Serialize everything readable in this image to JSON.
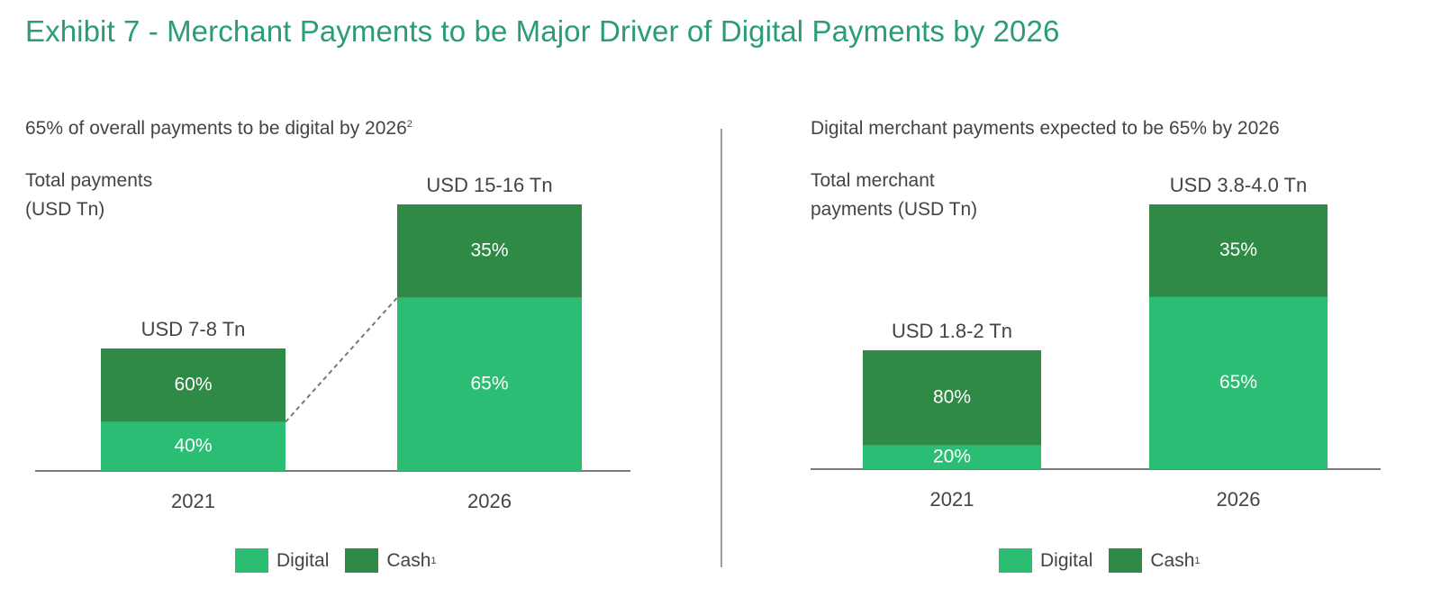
{
  "title": "Exhibit 7 - Merchant Payments to be Major Driver of Digital Payments by 2026",
  "colors": {
    "digital": "#2bbd74",
    "cash": "#2f8a45",
    "title": "#2a9d74"
  },
  "left_panel": {
    "subtitle": "65% of overall payments to be digital by 2026",
    "subtitle_note": "2",
    "ylabel_line1": "Total payments",
    "ylabel_line2": "(USD Tn)"
  },
  "right_panel": {
    "subtitle": "Digital merchant payments expected to be 65% by 2026",
    "ylabel_line1": "Total merchant",
    "ylabel_line2": "payments (USD Tn)"
  },
  "legend": {
    "digital": "Digital",
    "cash": "Cash",
    "cash_note": "1"
  },
  "chart_data": [
    {
      "type": "bar",
      "stacked": true,
      "categories": [
        "2021",
        "2026"
      ],
      "totals_labels": [
        "USD 7-8 Tn",
        "USD 15-16 Tn"
      ],
      "series": [
        {
          "name": "Digital",
          "values": [
            40,
            65
          ],
          "labels": [
            "40%",
            "65%"
          ]
        },
        {
          "name": "Cash",
          "values": [
            60,
            35
          ],
          "labels": [
            "60%",
            "35%"
          ]
        }
      ]
    },
    {
      "type": "bar",
      "stacked": true,
      "categories": [
        "2021",
        "2026"
      ],
      "totals_labels": [
        "USD 1.8-2 Tn",
        "USD 3.8-4.0 Tn"
      ],
      "series": [
        {
          "name": "Digital",
          "values": [
            20,
            65
          ],
          "labels": [
            "20%",
            "65%"
          ]
        },
        {
          "name": "Cash",
          "values": [
            80,
            35
          ],
          "labels": [
            "80%",
            "35%"
          ]
        }
      ]
    }
  ]
}
